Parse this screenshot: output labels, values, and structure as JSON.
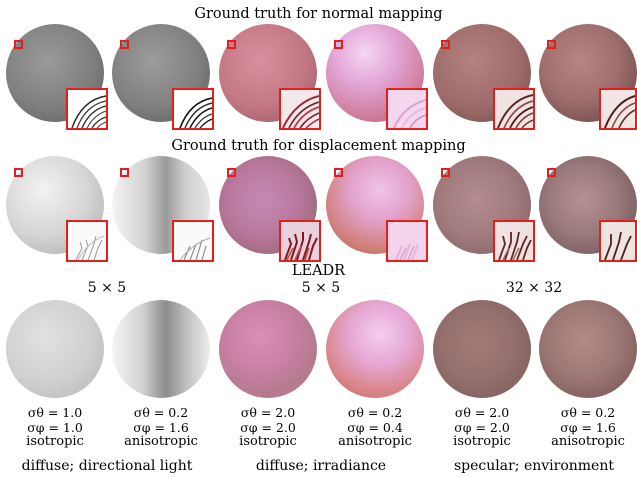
{
  "headers": {
    "normal": "Ground truth for normal mapping",
    "displacement": "Ground truth for displacement mapping",
    "leadr": "LEADR"
  },
  "resolutions": [
    "5 × 5",
    "5 × 5",
    "32 × 32"
  ],
  "columns": [
    {
      "sigma_theta": "σθ = 1.0",
      "sigma_phi": "σφ = 1.0",
      "type": "isotropic"
    },
    {
      "sigma_theta": "σθ = 0.2",
      "sigma_phi": "σφ = 1.6",
      "type": "anisotropic"
    },
    {
      "sigma_theta": "σθ = 2.0",
      "sigma_phi": "σφ = 2.0",
      "type": "isotropic"
    },
    {
      "sigma_theta": "σθ = 0.2",
      "sigma_phi": "σφ = 0.4",
      "type": "anisotropic"
    },
    {
      "sigma_theta": "σθ = 2.0",
      "sigma_phi": "σφ = 2.0",
      "type": "isotropic"
    },
    {
      "sigma_theta": "σθ = 0.2",
      "sigma_phi": "σφ = 1.6",
      "type": "anisotropic"
    }
  ],
  "groups": [
    {
      "label": "diffuse; directional light"
    },
    {
      "label": "diffuse; irradiance"
    },
    {
      "label": "specular; environment"
    }
  ],
  "colors": {
    "inset_border": "#e0201c"
  }
}
